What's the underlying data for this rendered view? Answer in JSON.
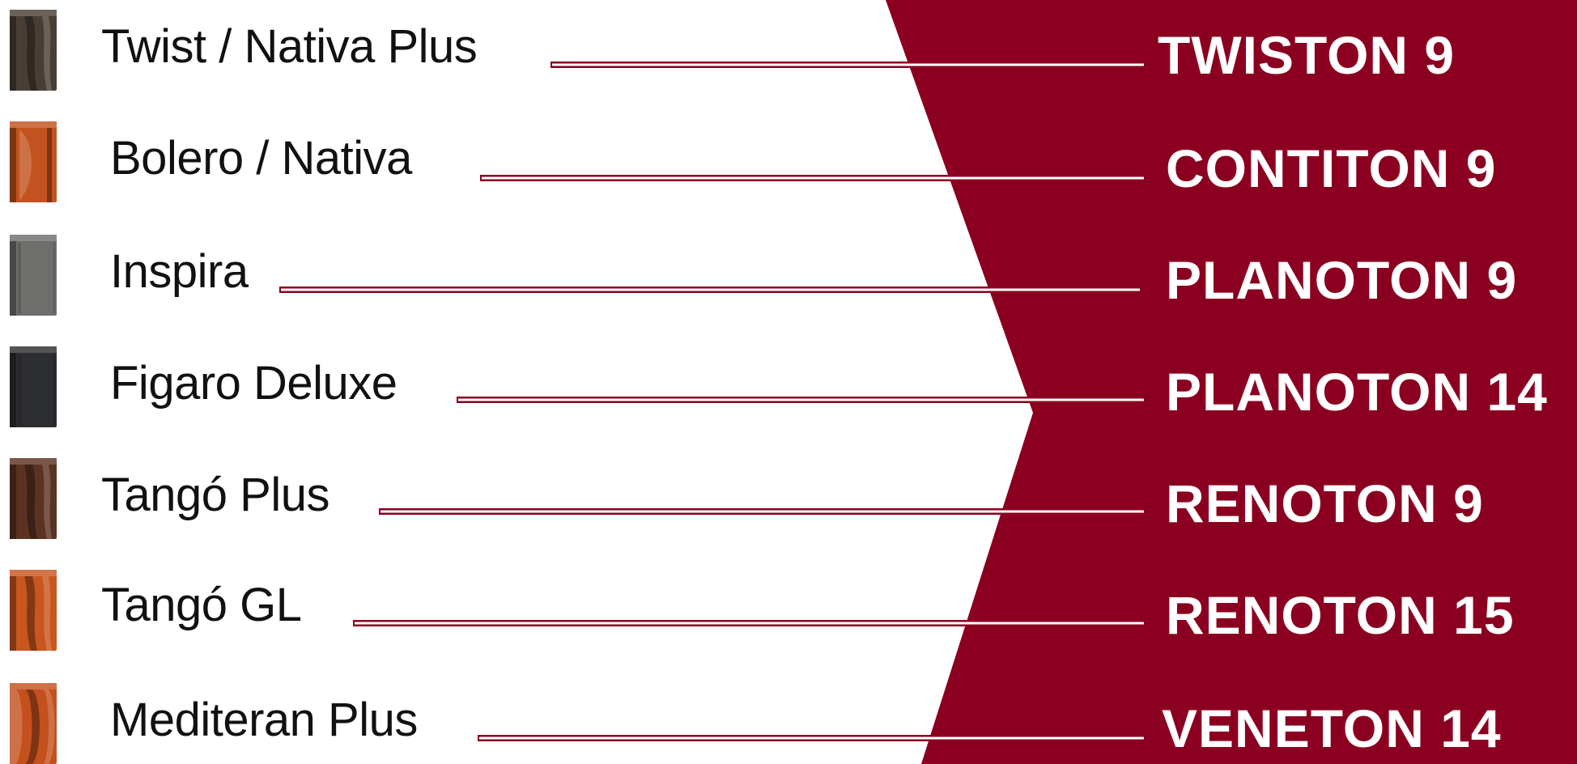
{
  "colors": {
    "brand_red": "#8b0020",
    "line_red": "#8b0020",
    "text_dark": "#111111",
    "text_light": "#ffffff"
  },
  "rows": [
    {
      "product": "Twist / Nativa Plus",
      "model": "TWISTON 9",
      "tile_color": "#4a3e34",
      "tile_shape": "twist-icon"
    },
    {
      "product": "Bolero / Nativa",
      "model": "CONTITON 9",
      "tile_color": "#c2521f",
      "tile_shape": "bolero-icon"
    },
    {
      "product": "Inspira",
      "model": "PLANOTON 9",
      "tile_color": "#6e6e6c",
      "tile_shape": "flat-tile-icon"
    },
    {
      "product": "Figaro Deluxe",
      "model": "PLANOTON 14",
      "tile_color": "#2c2d30",
      "tile_shape": "flat-tile-icon"
    },
    {
      "product": "Tangó Plus",
      "model": "RENOTON 9",
      "tile_color": "#5b3322",
      "tile_shape": "tango-icon"
    },
    {
      "product": "Tangó GL",
      "model": "RENOTON 15",
      "tile_color": "#c9561f",
      "tile_shape": "tango-icon"
    },
    {
      "product": "Mediteran Plus",
      "model": "VENETON 14",
      "tile_color": "#c4501e",
      "tile_shape": "mediteran-icon"
    }
  ]
}
